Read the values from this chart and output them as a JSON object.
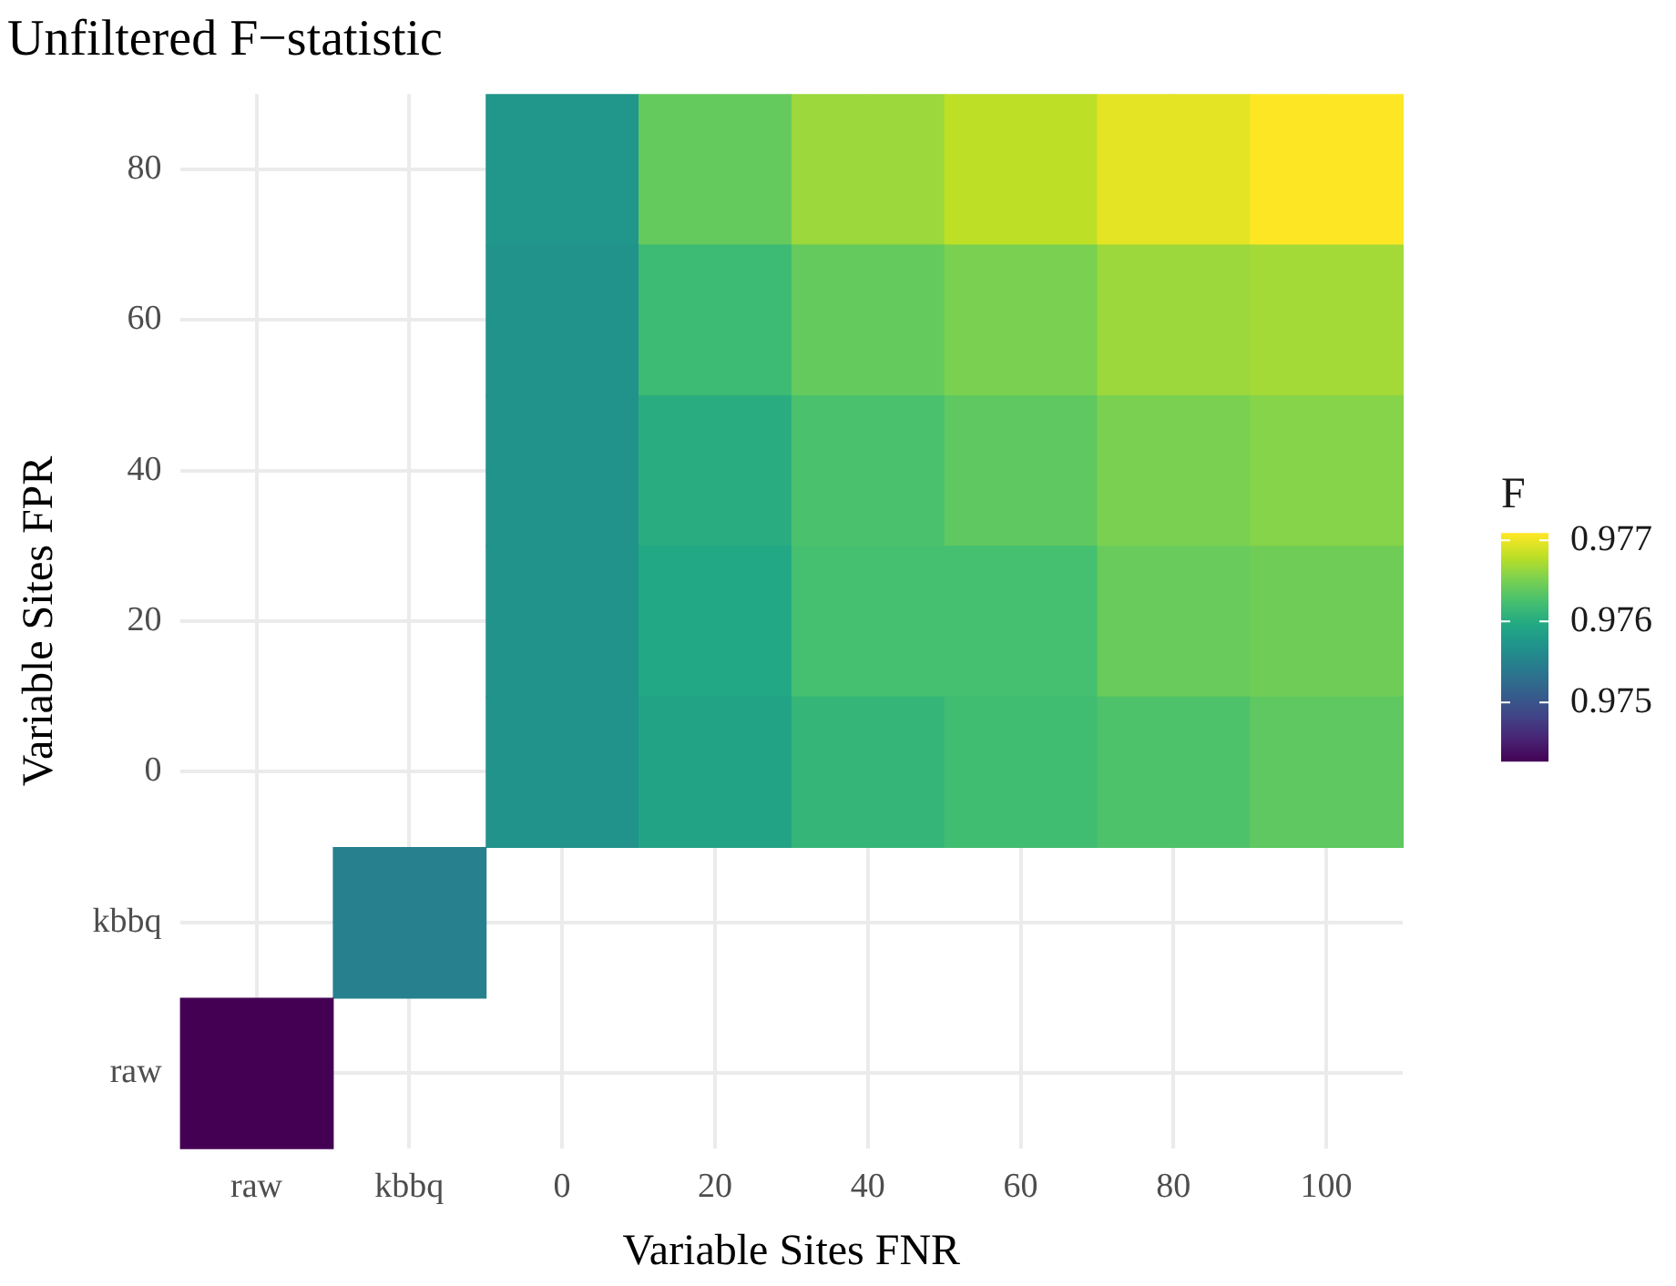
{
  "chart_data": {
    "type": "heatmap",
    "title": "Unfiltered F−statistic",
    "xlabel": "Variable Sites FNR",
    "ylabel": "Variable Sites FPR",
    "clabel": "F",
    "categories": [
      "raw",
      "kbbq",
      "0",
      "20",
      "40",
      "60",
      "80",
      "100"
    ],
    "y_categories": [
      "80",
      "60",
      "40",
      "20",
      "0",
      "kbbq",
      "raw"
    ],
    "cells": [
      [
        null,
        null,
        0.97574,
        0.97642,
        0.97667,
        0.97681,
        0.97698,
        0.97709
      ],
      [
        null,
        null,
        0.97571,
        0.97619,
        0.97642,
        0.97653,
        0.97667,
        0.9767
      ],
      [
        null,
        null,
        0.97571,
        0.97602,
        0.97628,
        0.97639,
        0.97653,
        0.97658
      ],
      [
        null,
        null,
        0.97571,
        0.97597,
        0.97625,
        0.97625,
        0.97644,
        0.97647
      ],
      [
        null,
        null,
        0.97571,
        0.97591,
        0.97613,
        0.97622,
        0.9763,
        0.97639
      ],
      [
        null,
        0.97549,
        null,
        null,
        null,
        null,
        null,
        null
      ],
      [
        0.97428,
        null,
        null,
        null,
        null,
        null,
        null,
        null
      ]
    ],
    "clim": [
      0.97428,
      0.97709
    ],
    "cticks": [
      0.975,
      0.976,
      0.977
    ],
    "grid": true
  }
}
